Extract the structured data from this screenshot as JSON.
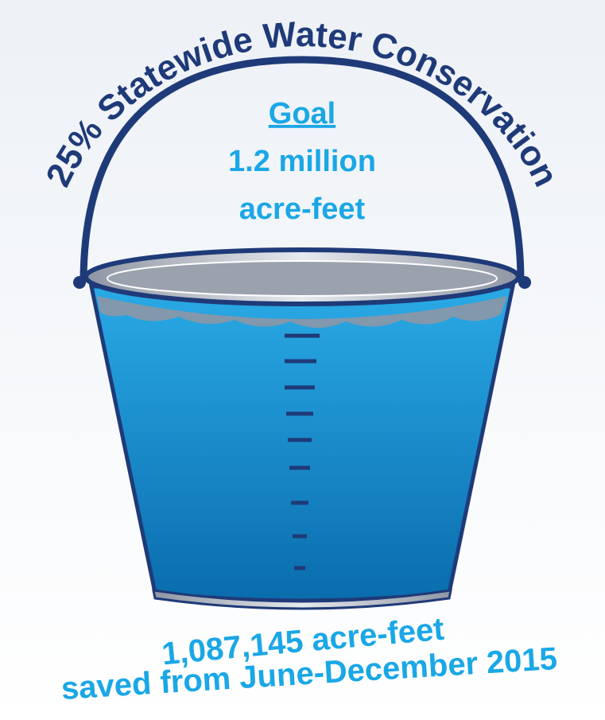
{
  "title": "25% Statewide Water Conservation",
  "goal": {
    "heading": "Goal",
    "amount": "1.2 million",
    "unit": "acre-feet"
  },
  "result": {
    "amount": "1,087,145 acre-feet",
    "period": "saved from June-December 2015"
  }
}
